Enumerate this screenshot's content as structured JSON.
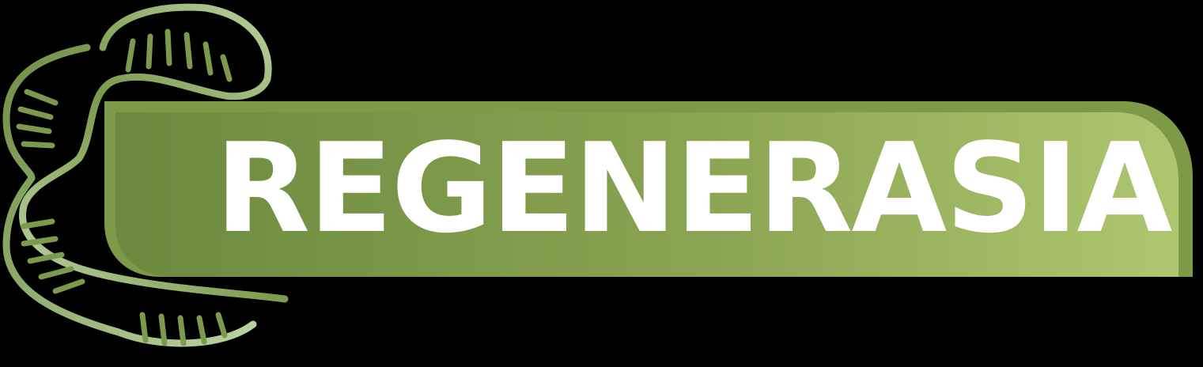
{
  "brand": {
    "name": "REGENERASIA",
    "text_color": "#ffffff",
    "banner_gradient": [
      "#6b8a3f",
      "#a8c26a"
    ],
    "banner_edge_color": "#7d9a48",
    "helix_colors": [
      "#6f8e44",
      "#b9d3a2"
    ]
  },
  "icons": {
    "emblem": "dna-helix-icon"
  }
}
